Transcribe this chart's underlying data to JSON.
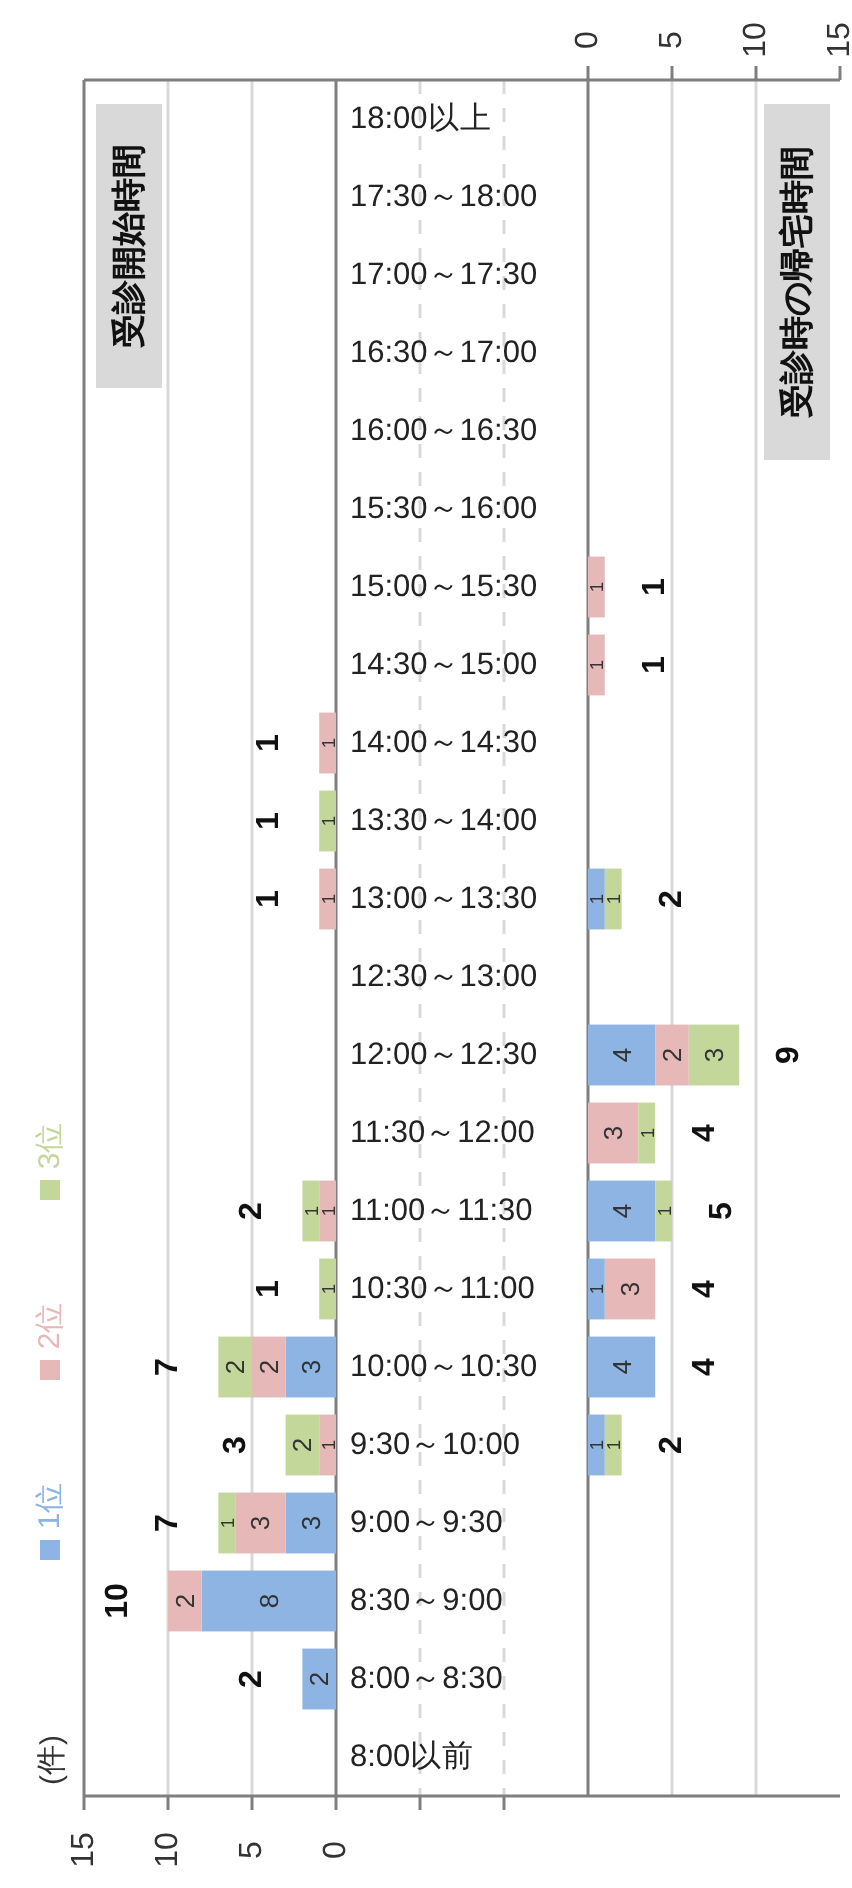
{
  "chart_data": [
    {
      "type": "bar",
      "orientation": "horizontal",
      "stacked": true,
      "title": "受診開始時間",
      "annotations": [
        "(件)"
      ],
      "legend": "left",
      "grid": "x",
      "data_labels": true,
      "categories": [
        "18:00以上",
        "17:30～18:00",
        "17:00～17:30",
        "16:30～17:00",
        "16:00～16:30",
        "15:30～16:00",
        "15:00～15:30",
        "14:30～15:00",
        "14:00～14:30",
        "13:30～14:00",
        "13:00～13:30",
        "12:30～13:00",
        "12:00～12:30",
        "11:30～12:00",
        "11:00～11:30",
        "10:30～11:00",
        "10:00～10:30",
        "9:30～10:00",
        "9:00～9:30",
        "8:30～9:00",
        "8:00～8:30",
        "8:00以前"
      ],
      "xlim": [
        15,
        -15
      ],
      "xticks": [
        15,
        10,
        5,
        0,
        {
          "value": -5,
          "label": null
        },
        {
          "value": -10,
          "label": null
        }
      ],
      "series": [
        {
          "name": "1位",
          "color": "#8db4e2",
          "values": [
            null,
            null,
            null,
            null,
            null,
            null,
            null,
            null,
            null,
            null,
            null,
            null,
            null,
            null,
            null,
            null,
            3,
            null,
            3,
            8,
            2,
            null
          ]
        },
        {
          "name": "2位",
          "color": "#e6b9b8",
          "values": [
            null,
            null,
            null,
            null,
            null,
            null,
            null,
            null,
            1,
            null,
            1,
            null,
            null,
            null,
            1,
            null,
            2,
            1,
            3,
            2,
            null,
            null
          ]
        },
        {
          "name": "3位",
          "color": "#c4d79b",
          "values": [
            null,
            null,
            null,
            null,
            null,
            null,
            null,
            null,
            null,
            1,
            null,
            null,
            null,
            null,
            1,
            1,
            2,
            2,
            1,
            null,
            null,
            null
          ]
        }
      ],
      "totals": [
        null,
        null,
        null,
        null,
        null,
        null,
        null,
        null,
        "1",
        "1",
        "1",
        null,
        null,
        null,
        "2",
        "1",
        "7",
        "3",
        "7",
        "10",
        "2",
        null
      ]
    },
    {
      "type": "bar",
      "orientation": "horizontal",
      "stacked": true,
      "title": "受診時の帰宅時間",
      "grid": "x",
      "data_labels": true,
      "categories": [
        null,
        null,
        null,
        null,
        null,
        null,
        null,
        null,
        null,
        null,
        null,
        null,
        null,
        null,
        null,
        null,
        null,
        null,
        null,
        null,
        null,
        null
      ],
      "xlim": [
        0,
        15
      ],
      "xticks": [
        0,
        5,
        10,
        15
      ],
      "series": [
        {
          "color": "#8db4e2",
          "values": [
            null,
            null,
            null,
            null,
            null,
            null,
            null,
            null,
            null,
            null,
            1,
            null,
            4,
            null,
            4,
            1,
            4,
            1,
            null,
            null,
            null,
            null
          ]
        },
        {
          "color": "#e6b9b8",
          "values": [
            null,
            null,
            null,
            null,
            null,
            null,
            1,
            1,
            null,
            null,
            null,
            null,
            2,
            3,
            null,
            3,
            null,
            null,
            null,
            null,
            null,
            null
          ]
        },
        {
          "color": "#c4d79b",
          "values": [
            null,
            null,
            null,
            null,
            null,
            null,
            null,
            null,
            null,
            null,
            1,
            null,
            3,
            1,
            1,
            null,
            null,
            1,
            null,
            null,
            null,
            null
          ]
        }
      ],
      "totals": [
        null,
        null,
        null,
        null,
        null,
        null,
        "1",
        "1",
        null,
        null,
        "2",
        null,
        "9",
        "4",
        "5",
        "4",
        "4",
        "2",
        null,
        null,
        null,
        null
      ]
    }
  ]
}
